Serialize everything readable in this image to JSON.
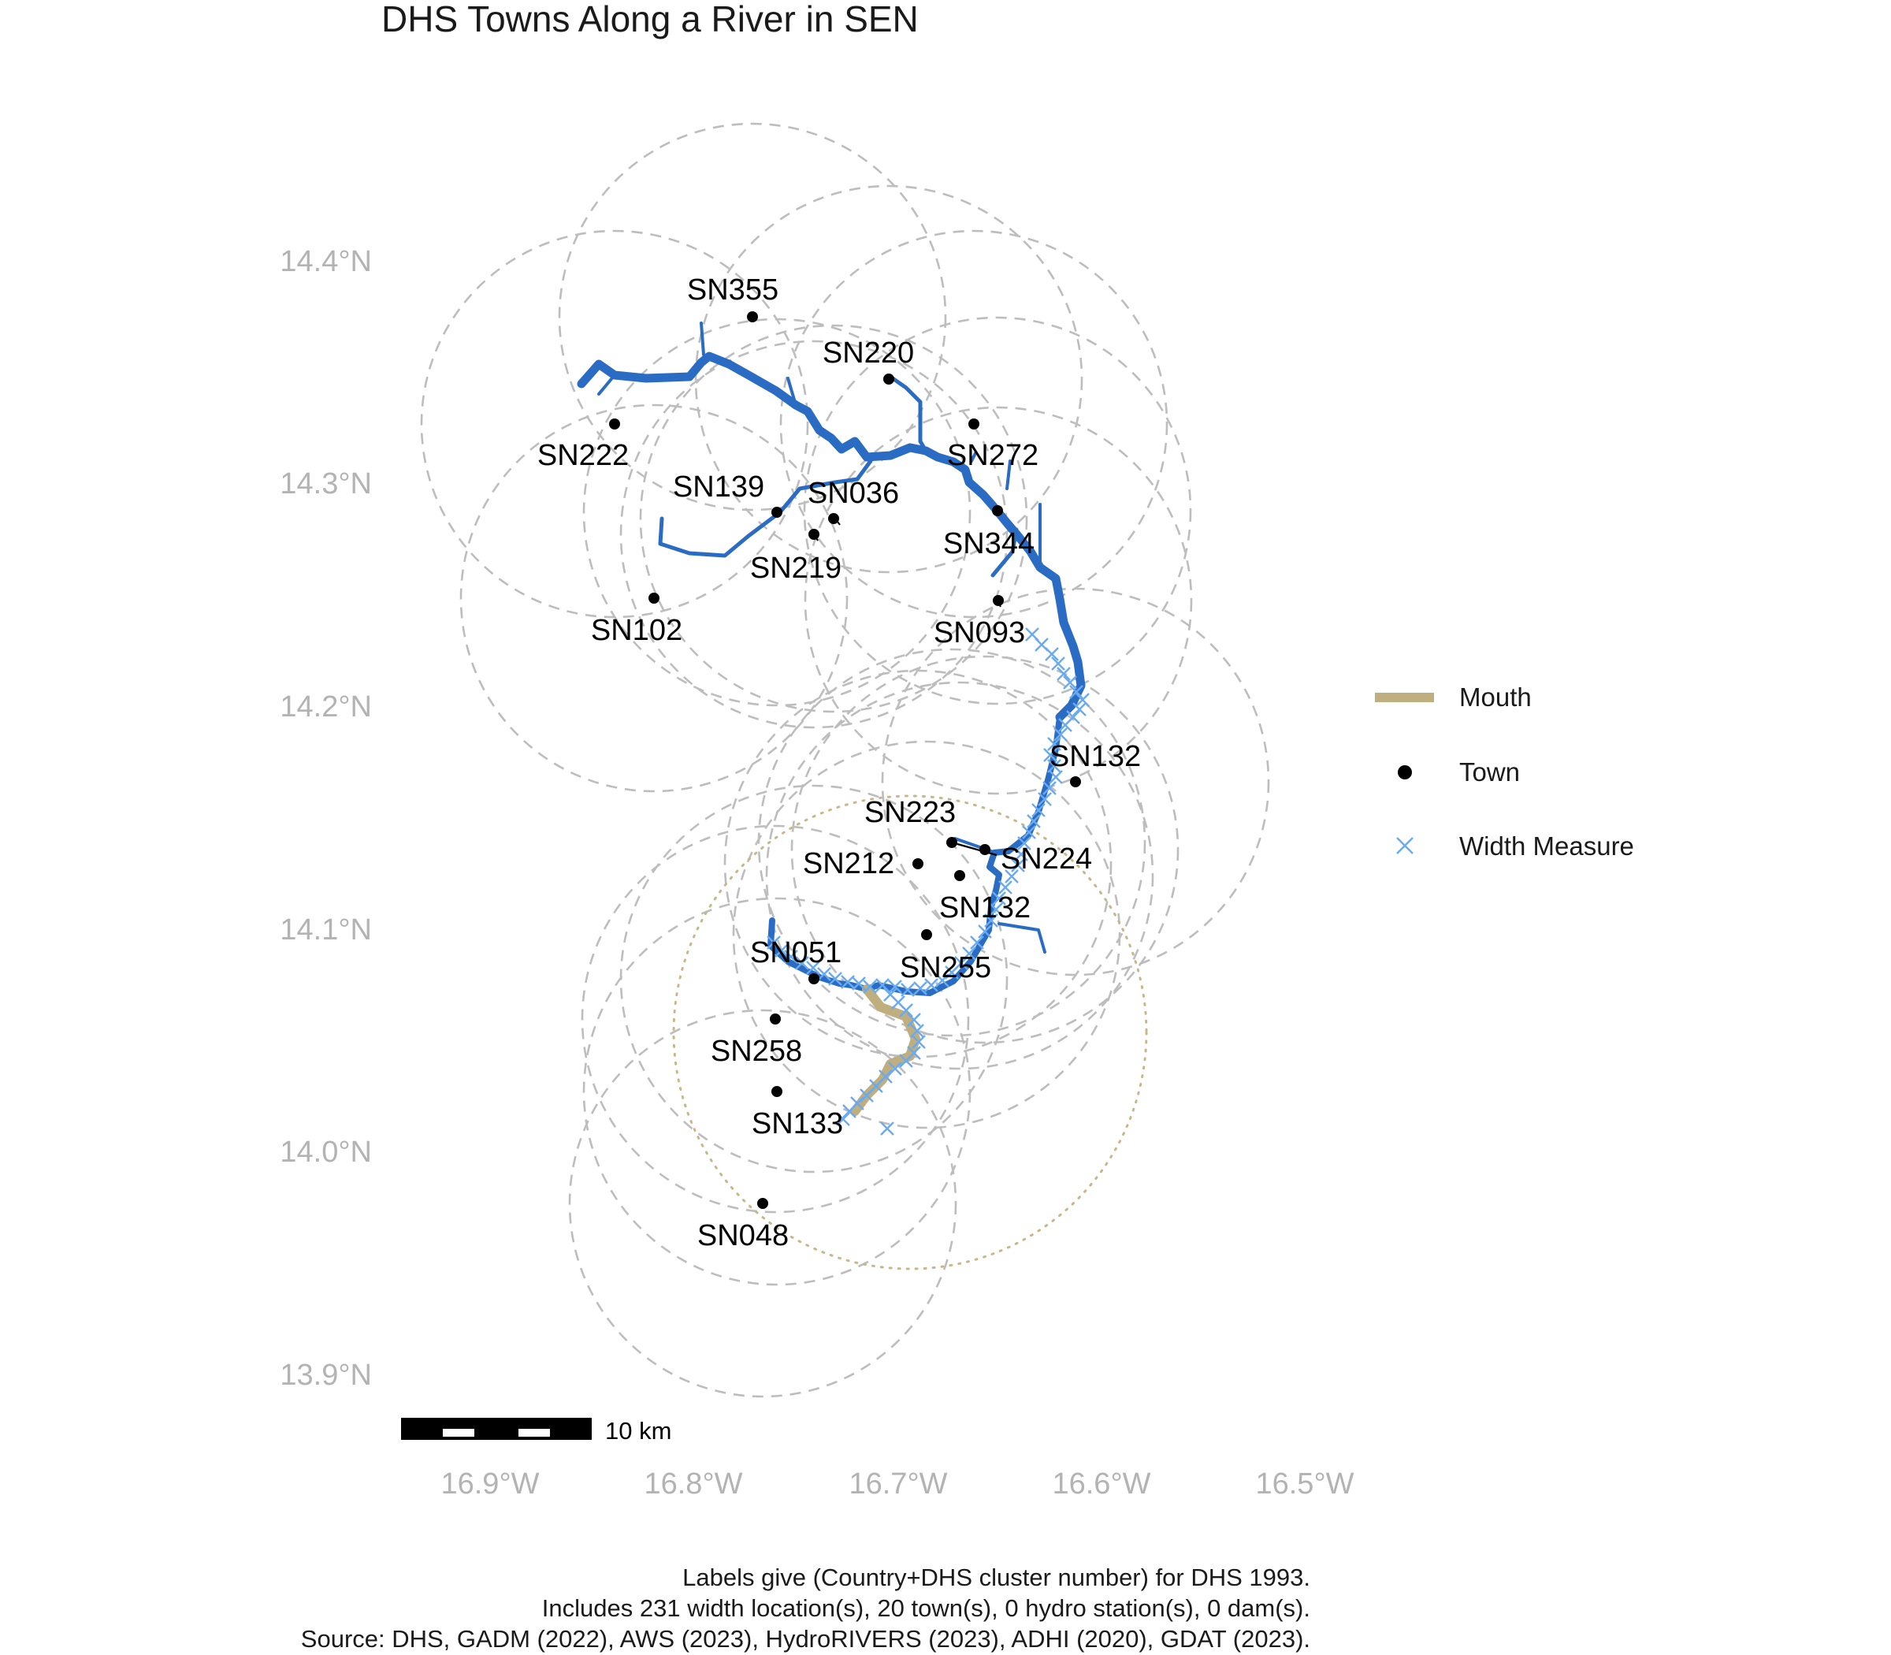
{
  "title": "DHS Towns Along a River in SEN",
  "axes": {
    "y_ticks": [
      "14.4°N",
      "14.3°N",
      "14.2°N",
      "14.1°N",
      "14.0°N",
      "13.9°N"
    ],
    "x_ticks": [
      "16.9°W",
      "16.8°W",
      "16.7°W",
      "16.6°W",
      "16.5°W"
    ]
  },
  "legend": {
    "placement": "right",
    "items": [
      {
        "label": "Mouth",
        "symbol": "line",
        "color": "#bfae7e"
      },
      {
        "label": "Town",
        "symbol": "dot",
        "color": "#000000"
      },
      {
        "label": "Width Measure",
        "symbol": "x",
        "color": "#6aaaf0"
      }
    ]
  },
  "scale_bar": {
    "label": "10 km"
  },
  "caption": [
    "Labels give (Country+DHS cluster number) for DHS 1993.",
    "Includes 231 width location(s), 20 town(s), 0 hydro station(s), 0 dam(s).",
    "Source: DHS, GADM (2022), AWS (2023), HydroRIVERS (2023), ADHI (2020), GDAT (2023)."
  ],
  "towns": [
    {
      "id": "SN355"
    },
    {
      "id": "SN220"
    },
    {
      "id": "SN222"
    },
    {
      "id": "SN272"
    },
    {
      "id": "SN139"
    },
    {
      "id": "SN036"
    },
    {
      "id": "SN219"
    },
    {
      "id": "SN344"
    },
    {
      "id": "SN102"
    },
    {
      "id": "SN093"
    },
    {
      "id": "SN132"
    },
    {
      "id": "SN223"
    },
    {
      "id": "SN212"
    },
    {
      "id": "SN224"
    },
    {
      "id": "SN132"
    },
    {
      "id": "SN051"
    },
    {
      "id": "SN255"
    },
    {
      "id": "SN258"
    },
    {
      "id": "SN133"
    },
    {
      "id": "SN048"
    }
  ],
  "colors": {
    "river": "#2a6cc4",
    "mouth": "#bfae7e",
    "width_measure": "#6aaaf0",
    "buffer": "#bdbdbd",
    "axis_text": "#b3b3b3"
  }
}
